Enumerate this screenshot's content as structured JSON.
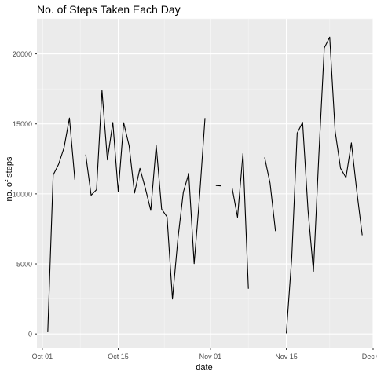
{
  "chart_data": {
    "type": "line",
    "title": "No. of Steps Taken Each Day",
    "xlabel": "date",
    "ylabel": "no. of steps",
    "x_ticks": [
      {
        "date": "2012-10-01",
        "label": "Oct 01"
      },
      {
        "date": "2012-10-15",
        "label": "Oct 15"
      },
      {
        "date": "2012-11-01",
        "label": "Nov 01"
      },
      {
        "date": "2012-11-15",
        "label": "Nov 15"
      },
      {
        "date": "2012-12-01",
        "label": "Dec 01"
      }
    ],
    "y_ticks": [
      0,
      5000,
      10000,
      15000,
      20000
    ],
    "xlim": [
      "2012-09-30",
      "2012-12-01"
    ],
    "ylim": [
      -1000,
      22500
    ],
    "grid": true,
    "colors": {
      "panel": "#ebebeb",
      "grid_major": "#ffffff",
      "grid_minor": "#f5f5f5",
      "line": "#000000",
      "tick_text": "#4d4d4d"
    },
    "series": [
      {
        "values": [
          [
            "2012-10-01",
            null
          ],
          [
            "2012-10-02",
            126
          ],
          [
            "2012-10-03",
            11352
          ],
          [
            "2012-10-04",
            12116
          ],
          [
            "2012-10-05",
            13294
          ],
          [
            "2012-10-06",
            15420
          ],
          [
            "2012-10-07",
            11015
          ],
          [
            "2012-10-08",
            null
          ],
          [
            "2012-10-09",
            12811
          ],
          [
            "2012-10-10",
            9900
          ],
          [
            "2012-10-11",
            10304
          ],
          [
            "2012-10-12",
            17382
          ],
          [
            "2012-10-13",
            12426
          ],
          [
            "2012-10-14",
            15098
          ],
          [
            "2012-10-15",
            10139
          ],
          [
            "2012-10-16",
            15084
          ],
          [
            "2012-10-17",
            13452
          ],
          [
            "2012-10-18",
            10056
          ],
          [
            "2012-10-19",
            11829
          ],
          [
            "2012-10-20",
            10395
          ],
          [
            "2012-10-21",
            8821
          ],
          [
            "2012-10-22",
            13460
          ],
          [
            "2012-10-23",
            8918
          ],
          [
            "2012-10-24",
            8355
          ],
          [
            "2012-10-25",
            2492
          ],
          [
            "2012-10-26",
            6778
          ],
          [
            "2012-10-27",
            10119
          ],
          [
            "2012-10-28",
            11458
          ],
          [
            "2012-10-29",
            5018
          ],
          [
            "2012-10-30",
            9819
          ],
          [
            "2012-10-31",
            15414
          ],
          [
            "2012-11-01",
            null
          ],
          [
            "2012-11-02",
            10600
          ],
          [
            "2012-11-03",
            10571
          ],
          [
            "2012-11-04",
            null
          ],
          [
            "2012-11-05",
            10439
          ],
          [
            "2012-11-06",
            8334
          ],
          [
            "2012-11-07",
            12883
          ],
          [
            "2012-11-08",
            3219
          ],
          [
            "2012-11-09",
            null
          ],
          [
            "2012-11-10",
            null
          ],
          [
            "2012-11-11",
            12608
          ],
          [
            "2012-11-12",
            10765
          ],
          [
            "2012-11-13",
            7336
          ],
          [
            "2012-11-14",
            null
          ],
          [
            "2012-11-15",
            41
          ],
          [
            "2012-11-16",
            5441
          ],
          [
            "2012-11-17",
            14339
          ],
          [
            "2012-11-18",
            15110
          ],
          [
            "2012-11-19",
            8841
          ],
          [
            "2012-11-20",
            4472
          ],
          [
            "2012-11-21",
            12787
          ],
          [
            "2012-11-22",
            20427
          ],
          [
            "2012-11-23",
            21194
          ],
          [
            "2012-11-24",
            14478
          ],
          [
            "2012-11-25",
            11834
          ],
          [
            "2012-11-26",
            11162
          ],
          [
            "2012-11-27",
            13646
          ],
          [
            "2012-11-28",
            10183
          ],
          [
            "2012-11-29",
            7047
          ],
          [
            "2012-11-30",
            null
          ]
        ]
      }
    ]
  }
}
